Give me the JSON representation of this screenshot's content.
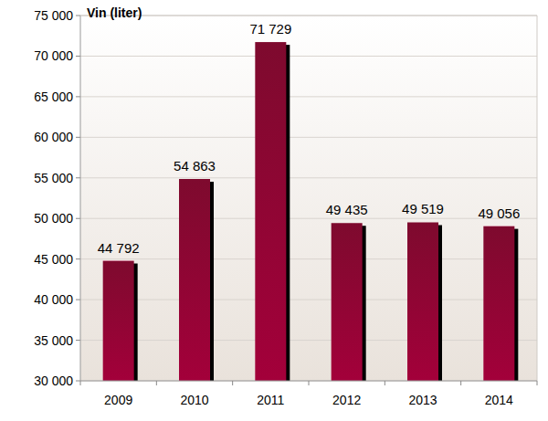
{
  "chart_data": {
    "type": "bar",
    "title": "Vin (liter)",
    "categories": [
      "2009",
      "2010",
      "2011",
      "2012",
      "2013",
      "2014"
    ],
    "values": [
      44792,
      54863,
      71729,
      49435,
      49519,
      49056
    ],
    "value_labels": [
      "44 792",
      "54 863",
      "71 729",
      "49 435",
      "49 519",
      "49 056"
    ],
    "data_labels": true,
    "color": "#a3003a",
    "ylim": [
      30000,
      75000
    ],
    "yticks": [
      {
        "value": 30000,
        "label": "30 000"
      },
      {
        "value": 35000,
        "label": "35 000"
      },
      {
        "value": 40000,
        "label": "40 000"
      },
      {
        "value": 45000,
        "label": "45 000"
      },
      {
        "value": 50000,
        "label": "50 000"
      },
      {
        "value": 55000,
        "label": "55 000"
      },
      {
        "value": 60000,
        "label": "60 000"
      },
      {
        "value": 65000,
        "label": "65 000"
      },
      {
        "value": 70000,
        "label": "70 000"
      },
      {
        "value": 75000,
        "label": "75 000"
      }
    ],
    "grid": true
  }
}
